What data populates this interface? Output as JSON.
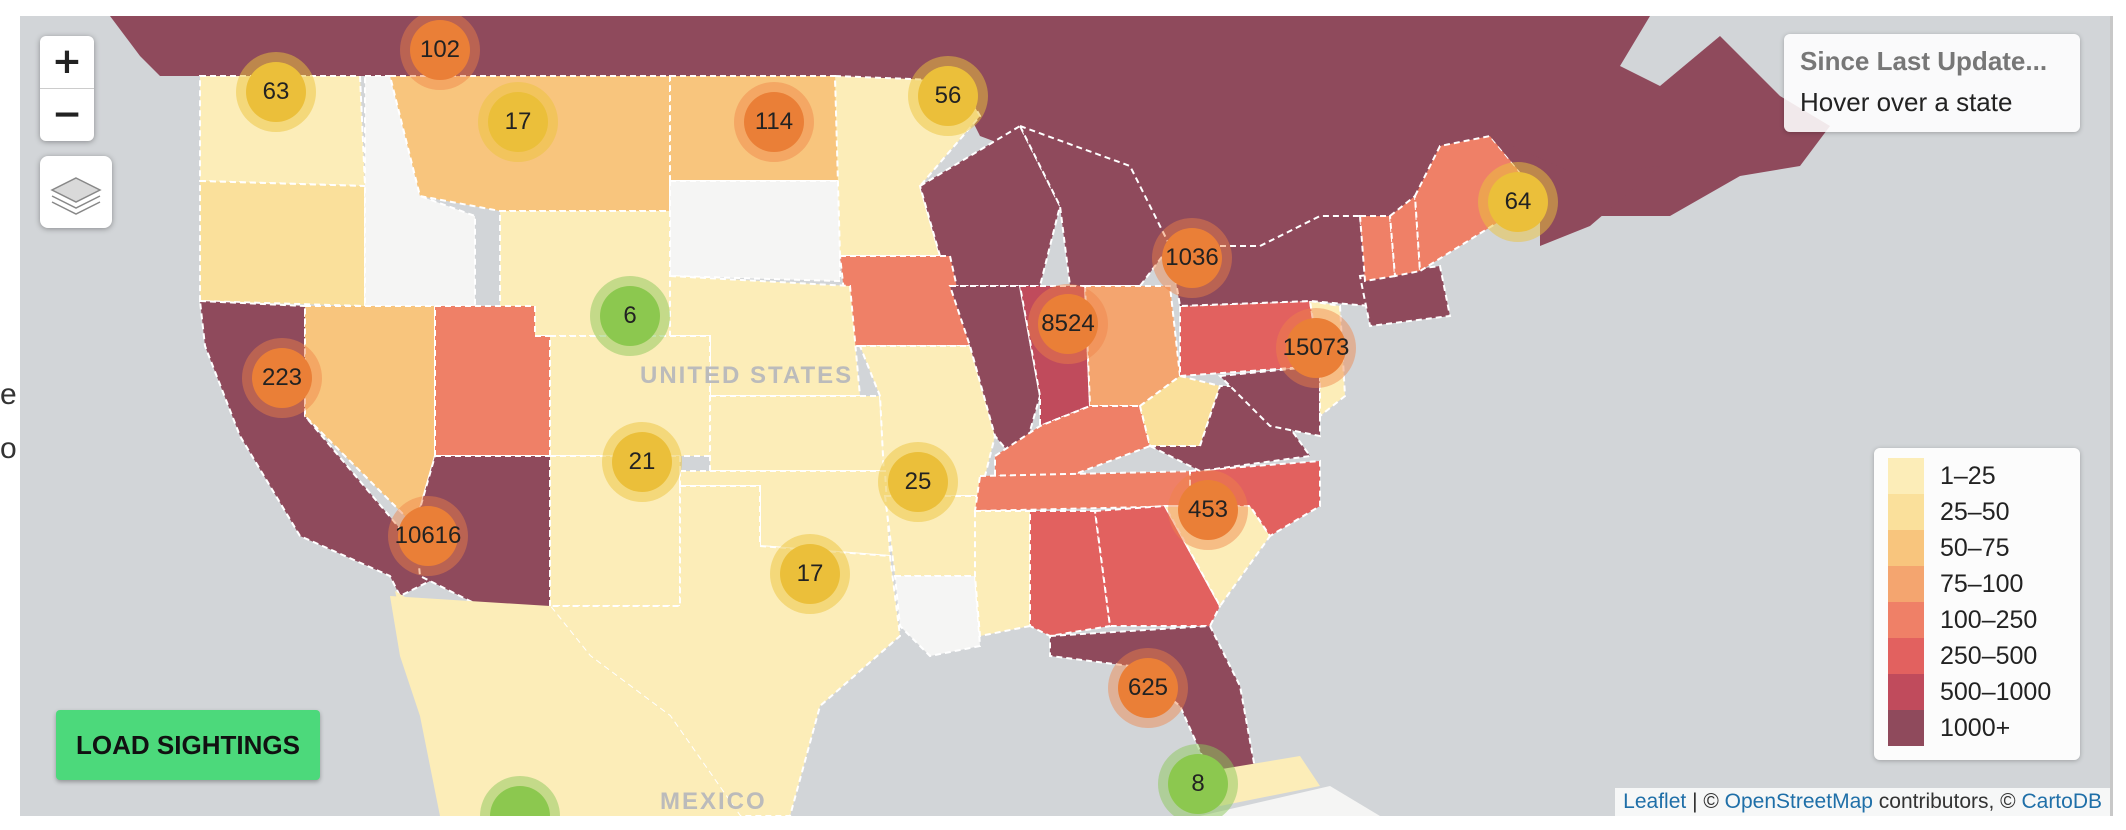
{
  "zoom": {
    "in_label": "+",
    "out_label": "−"
  },
  "info": {
    "title": "Since Last Update...",
    "subtitle": "Hover over a state"
  },
  "load_button": "LOAD SIGHTINGS",
  "map_labels": {
    "country_us": "UNITED STATES",
    "country_mx": "MEXICO"
  },
  "legend": [
    {
      "label": "1–25",
      "color": "#fcedb8"
    },
    {
      "label": "25–50",
      "color": "#fae09b"
    },
    {
      "label": "50–75",
      "color": "#f8c57d"
    },
    {
      "label": "75–100",
      "color": "#f4a56f"
    },
    {
      "label": "100–250",
      "color": "#ef8067"
    },
    {
      "label": "250–500",
      "color": "#e2615f"
    },
    {
      "label": "500–1000",
      "color": "#c04b5c"
    },
    {
      "label": "1000+",
      "color": "#8f4a5c"
    }
  ],
  "clusters": [
    {
      "value": "102",
      "kind": "orange"
    },
    {
      "value": "63",
      "kind": "yellow"
    },
    {
      "value": "17",
      "kind": "yellow"
    },
    {
      "value": "114",
      "kind": "orange"
    },
    {
      "value": "56",
      "kind": "yellow"
    },
    {
      "value": "64",
      "kind": "yellow"
    },
    {
      "value": "1036",
      "kind": "orange"
    },
    {
      "value": "8524",
      "kind": "orange"
    },
    {
      "value": "15073",
      "kind": "orange"
    },
    {
      "value": "6",
      "kind": "green"
    },
    {
      "value": "223",
      "kind": "orange"
    },
    {
      "value": "21",
      "kind": "yellow"
    },
    {
      "value": "25",
      "kind": "yellow"
    },
    {
      "value": "453",
      "kind": "orange"
    },
    {
      "value": "10616",
      "kind": "orange"
    },
    {
      "value": "17",
      "kind": "yellow"
    },
    {
      "value": "625",
      "kind": "orange"
    },
    {
      "value": "8",
      "kind": "green"
    },
    {
      "value": "",
      "kind": "green"
    }
  ],
  "attribution": {
    "leaflet": "Leaflet",
    "sep1": " | © ",
    "osm": "OpenStreetMap",
    "mid": " contributors, © ",
    "carto": "CartoDB"
  },
  "edge_fragments": [
    "e",
    "o"
  ]
}
